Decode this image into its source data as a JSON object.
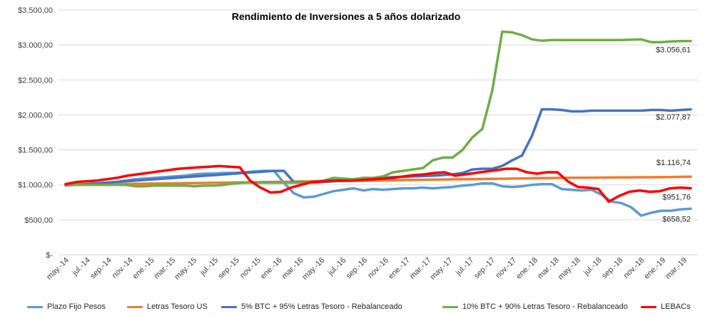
{
  "chart_data": {
    "type": "line",
    "title": "Rendimiento de Inversiones a 5 años dolarizado",
    "ylim": [
      0,
      3500
    ],
    "y_ticks": [
      {
        "value": 0,
        "label": "$-"
      },
      {
        "value": 500,
        "label": "$500,00"
      },
      {
        "value": 1000,
        "label": "$1.000,00"
      },
      {
        "value": 1500,
        "label": "$1.500,00"
      },
      {
        "value": 2000,
        "label": "$2.000,00"
      },
      {
        "value": 2500,
        "label": "$2.500,00"
      },
      {
        "value": 3000,
        "label": "$3.000,00"
      },
      {
        "value": 3500,
        "label": "$3.500,00"
      }
    ],
    "x_tick_labels": [
      "may.-14",
      "jul.-14",
      "sep.-14",
      "nov.-14",
      "ene.-15",
      "mar.-15",
      "may.-15",
      "jul.-15",
      "sep.-15",
      "nov.-15",
      "ene.-16",
      "mar.-16",
      "may.-16",
      "jul.-16",
      "sep.-16",
      "nov.-16",
      "ene.-17",
      "mar.-17",
      "may.-17",
      "jul.-17",
      "sep.-17",
      "nov.-17",
      "ene.-18",
      "mar.-18",
      "may.-18",
      "jul.-18",
      "sep.-18",
      "nov.-18",
      "ene.-19",
      "mar.-19"
    ],
    "grid": true,
    "legend_position": "bottom",
    "series": [
      {
        "name": "Plazo Fijo Pesos",
        "color": "#5B9BD5",
        "values": [
          990,
          1000,
          1010,
          1020,
          1030,
          1040,
          1060,
          1080,
          1090,
          1100,
          1110,
          1120,
          1130,
          1150,
          1160,
          1160,
          1170,
          1170,
          1180,
          1190,
          1200,
          1200,
          1030,
          880,
          820,
          830,
          870,
          910,
          930,
          950,
          920,
          940,
          930,
          940,
          950,
          950,
          960,
          950,
          960,
          970,
          990,
          1000,
          1020,
          1020,
          980,
          970,
          980,
          1000,
          1010,
          1010,
          940,
          930,
          920,
          930,
          860,
          760,
          740,
          680,
          560,
          600,
          630,
          630,
          650,
          658.52
        ],
        "end_label": "$658,52"
      },
      {
        "name": "Letras Tesoro US",
        "color": "#ED7D31",
        "values": [
          1000,
          1002,
          1004,
          1006,
          1008,
          1010,
          1012,
          1014,
          1016,
          1018,
          1020,
          1022,
          1024,
          1026,
          1028,
          1030,
          1032,
          1034,
          1036,
          1038,
          1040,
          1042,
          1044,
          1046,
          1048,
          1050,
          1052,
          1054,
          1056,
          1058,
          1060,
          1062,
          1064,
          1066,
          1068,
          1070,
          1072,
          1074,
          1076,
          1078,
          1080,
          1082,
          1084,
          1086,
          1088,
          1090,
          1092,
          1094,
          1096,
          1098,
          1100,
          1101,
          1102,
          1103,
          1104,
          1105,
          1106,
          1107,
          1108,
          1109,
          1110,
          1112,
          1114,
          1116.74
        ],
        "end_label": "$1.116,74"
      },
      {
        "name": "5% BTC + 95% Letras Tesoro - Rebalanceado",
        "color": "#4472C4",
        "values": [
          1000,
          1005,
          1010,
          1020,
          1030,
          1040,
          1050,
          1060,
          1070,
          1080,
          1090,
          1100,
          1110,
          1120,
          1130,
          1140,
          1150,
          1160,
          1170,
          1180,
          1190,
          1200,
          1200,
          1040,
          1040,
          1030,
          1040,
          1050,
          1060,
          1070,
          1080,
          1090,
          1100,
          1110,
          1115,
          1120,
          1125,
          1130,
          1140,
          1150,
          1170,
          1220,
          1230,
          1230,
          1270,
          1350,
          1420,
          1700,
          2080,
          2080,
          2070,
          2050,
          2050,
          2060,
          2060,
          2060,
          2060,
          2060,
          2060,
          2070,
          2070,
          2060,
          2070,
          2077.87
        ],
        "end_label": "$2.077,87"
      },
      {
        "name": "10% BTC + 90% Letras Tesoro - Rebalanceado",
        "color": "#70AD47",
        "values": [
          1000,
          1000,
          1000,
          1000,
          1000,
          1000,
          1000,
          980,
          980,
          990,
          990,
          990,
          990,
          980,
          990,
          990,
          1000,
          1020,
          1030,
          1030,
          1030,
          1030,
          1030,
          1030,
          1030,
          1040,
          1060,
          1100,
          1090,
          1080,
          1100,
          1100,
          1120,
          1180,
          1200,
          1220,
          1240,
          1350,
          1390,
          1390,
          1500,
          1680,
          1800,
          2350,
          3190,
          3180,
          3140,
          3080,
          3060,
          3070,
          3070,
          3070,
          3070,
          3070,
          3070,
          3070,
          3070,
          3075,
          3080,
          3040,
          3040,
          3050,
          3055,
          3056.61
        ],
        "end_label": "$3.056,61"
      },
      {
        "name": "LEBACs",
        "color": "#FF0000",
        "values": [
          1010,
          1040,
          1050,
          1060,
          1080,
          1100,
          1130,
          1150,
          1170,
          1190,
          1210,
          1230,
          1240,
          1250,
          1260,
          1270,
          1260,
          1250,
          1060,
          960,
          890,
          900,
          960,
          1000,
          1040,
          1050,
          1060,
          1060,
          1060,
          1070,
          1080,
          1090,
          1100,
          1120,
          1140,
          1150,
          1170,
          1180,
          1130,
          1150,
          1170,
          1190,
          1210,
          1230,
          1230,
          1180,
          1160,
          1180,
          1180,
          1050,
          970,
          960,
          940,
          760,
          840,
          900,
          920,
          900,
          910,
          950,
          960,
          951.76
        ],
        "end_label": "$951,76"
      }
    ]
  }
}
